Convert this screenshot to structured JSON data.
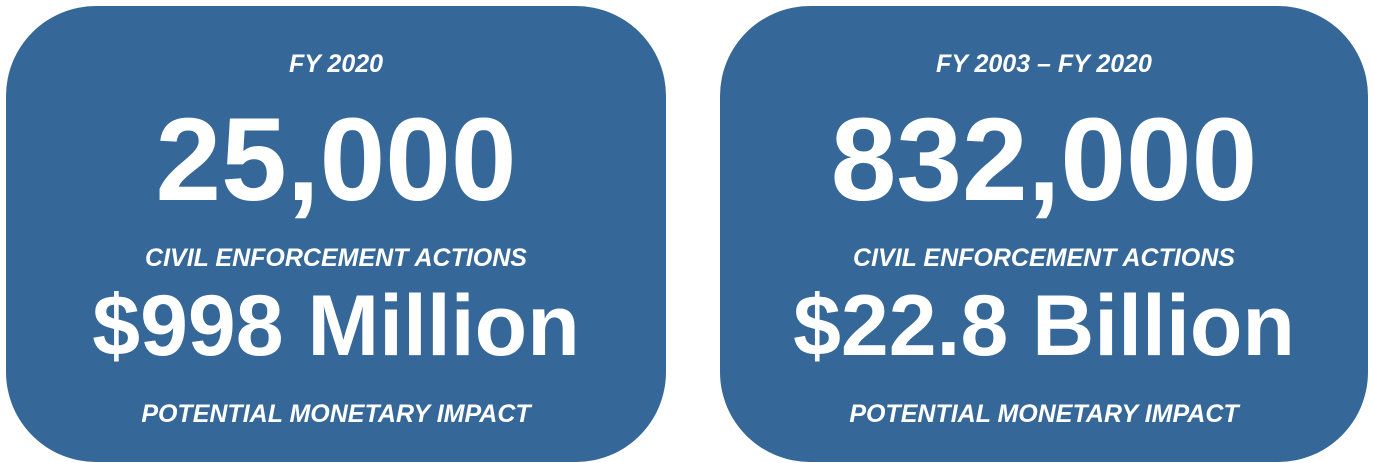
{
  "cards": [
    {
      "period": "FY 2020",
      "count": "25,000",
      "count_label": "CIVIL ENFORCEMENT ACTIONS",
      "amount": "$998 Million",
      "amount_label": "POTENTIAL MONETARY IMPACT"
    },
    {
      "period": "FY 2003 – FY 2020",
      "count": "832,000",
      "count_label": "CIVIL ENFORCEMENT ACTIONS",
      "amount": "$22.8 Billion",
      "amount_label": "POTENTIAL MONETARY IMPACT"
    }
  ]
}
